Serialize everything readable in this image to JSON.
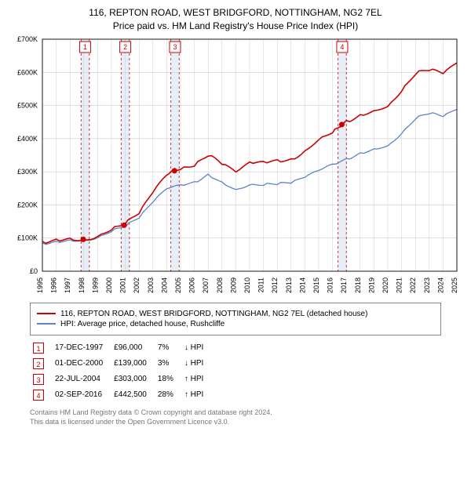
{
  "title_line1": "116, REPTON ROAD, WEST BRIDGFORD, NOTTINGHAM, NG2 7EL",
  "title_line2": "Price paid vs. HM Land Registry's House Price Index (HPI)",
  "chart": {
    "type": "line",
    "background_color": "#ffffff",
    "grid_color": "#cccccc",
    "marker_border_color": "#cc0000",
    "marker_fill_color": "#ffffff",
    "marker_dash_color": "#cc0000",
    "band_fill": "#e6eef7",
    "sale_point_color": "#cc0000",
    "xlim": [
      1995,
      2025
    ],
    "ylim": [
      0,
      700000
    ],
    "ytick_step": 100000,
    "ytick_labels": [
      "£0",
      "£100K",
      "£200K",
      "£300K",
      "£400K",
      "£500K",
      "£600K",
      "£700K"
    ],
    "xticks": [
      1995,
      1996,
      1997,
      1998,
      1999,
      2000,
      2001,
      2002,
      2003,
      2004,
      2005,
      2006,
      2007,
      2008,
      2009,
      2010,
      2011,
      2012,
      2013,
      2014,
      2015,
      2016,
      2017,
      2018,
      2019,
      2020,
      2021,
      2022,
      2023,
      2024,
      2025
    ],
    "bands": [
      {
        "start": 1997.8,
        "end": 1998.4
      },
      {
        "start": 2000.7,
        "end": 2001.3
      },
      {
        "start": 2004.3,
        "end": 2004.9
      },
      {
        "start": 2016.4,
        "end": 2017.0
      }
    ],
    "markers_on_chart": [
      {
        "n": "1",
        "x": 1998.1
      },
      {
        "n": "2",
        "x": 2001.0
      },
      {
        "n": "3",
        "x": 2004.6
      },
      {
        "n": "4",
        "x": 2016.7
      }
    ],
    "sale_points": [
      {
        "x": 1997.96,
        "y": 96000
      },
      {
        "x": 2000.92,
        "y": 139000
      },
      {
        "x": 2004.56,
        "y": 303000
      },
      {
        "x": 2016.67,
        "y": 442500
      }
    ],
    "series": [
      {
        "name": "subject",
        "label": "116, REPTON ROAD, WEST BRIDGFORD, NOTTINGHAM, NG2 7EL (detached house)",
        "color": "#cc0000",
        "line_width": 1.6,
        "data": [
          [
            1995,
            90000
          ],
          [
            1996,
            92000
          ],
          [
            1997,
            94000
          ],
          [
            1997.96,
            96000
          ],
          [
            1999,
            110000
          ],
          [
            2000,
            125000
          ],
          [
            2000.92,
            139000
          ],
          [
            2002,
            180000
          ],
          [
            2003,
            240000
          ],
          [
            2004,
            285000
          ],
          [
            2004.56,
            303000
          ],
          [
            2005,
            310000
          ],
          [
            2006,
            325000
          ],
          [
            2007,
            350000
          ],
          [
            2008,
            320000
          ],
          [
            2009,
            300000
          ],
          [
            2010,
            330000
          ],
          [
            2011,
            325000
          ],
          [
            2012,
            330000
          ],
          [
            2013,
            340000
          ],
          [
            2014,
            365000
          ],
          [
            2015,
            395000
          ],
          [
            2016,
            420000
          ],
          [
            2016.67,
            442500
          ],
          [
            2017,
            455000
          ],
          [
            2018,
            470000
          ],
          [
            2019,
            480000
          ],
          [
            2020,
            500000
          ],
          [
            2021,
            550000
          ],
          [
            2022,
            595000
          ],
          [
            2023,
            605000
          ],
          [
            2024,
            600000
          ],
          [
            2025,
            630000
          ]
        ]
      },
      {
        "name": "hpi",
        "label": "HPI: Average price, detached house, Rushcliffe",
        "color": "#5b84c4",
        "line_width": 1.3,
        "data": [
          [
            1995,
            85000
          ],
          [
            1996,
            87000
          ],
          [
            1997,
            90000
          ],
          [
            1998,
            95000
          ],
          [
            1999,
            105000
          ],
          [
            2000,
            120000
          ],
          [
            2001,
            135000
          ],
          [
            2002,
            165000
          ],
          [
            2003,
            210000
          ],
          [
            2004,
            245000
          ],
          [
            2005,
            258000
          ],
          [
            2006,
            270000
          ],
          [
            2007,
            290000
          ],
          [
            2008,
            265000
          ],
          [
            2009,
            248000
          ],
          [
            2010,
            265000
          ],
          [
            2011,
            260000
          ],
          [
            2012,
            262000
          ],
          [
            2013,
            270000
          ],
          [
            2014,
            285000
          ],
          [
            2015,
            300000
          ],
          [
            2016,
            320000
          ],
          [
            2017,
            340000
          ],
          [
            2018,
            355000
          ],
          [
            2019,
            365000
          ],
          [
            2020,
            380000
          ],
          [
            2021,
            420000
          ],
          [
            2022,
            460000
          ],
          [
            2023,
            475000
          ],
          [
            2024,
            470000
          ],
          [
            2025,
            490000
          ]
        ]
      }
    ]
  },
  "legend": {
    "row1": "116, REPTON ROAD, WEST BRIDGFORD, NOTTINGHAM, NG2 7EL (detached house)",
    "row2": "HPI: Average price, detached house, Rushcliffe"
  },
  "markers_table": [
    {
      "n": "1",
      "date": "17-DEC-1997",
      "price": "£96,000",
      "pct": "7%",
      "arrow": "↓",
      "suffix": "HPI"
    },
    {
      "n": "2",
      "date": "01-DEC-2000",
      "price": "£139,000",
      "pct": "3%",
      "arrow": "↓",
      "suffix": "HPI"
    },
    {
      "n": "3",
      "date": "22-JUL-2004",
      "price": "£303,000",
      "pct": "18%",
      "arrow": "↑",
      "suffix": "HPI"
    },
    {
      "n": "4",
      "date": "02-SEP-2016",
      "price": "£442,500",
      "pct": "28%",
      "arrow": "↑",
      "suffix": "HPI"
    }
  ],
  "footnote_line1": "Contains HM Land Registry data © Crown copyright and database right 2024.",
  "footnote_line2": "This data is licensed under the Open Government Licence v3.0."
}
